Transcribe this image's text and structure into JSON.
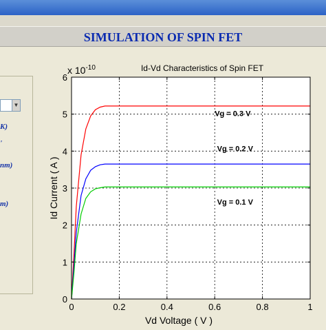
{
  "banner": {
    "title": "SIMULATION OF SPIN FET"
  },
  "left_panel": {
    "params": [
      {
        "text": "K)"
      },
      {
        "text": "'"
      },
      {
        "text": "nm)"
      },
      {
        "text": "m)"
      }
    ]
  },
  "colors": {
    "banner_text": "#0b2bb0",
    "series": [
      "#ff0000",
      "#0000ff",
      "#00cc00"
    ]
  },
  "chart_data": {
    "type": "line",
    "title": "Id-Vd Characteristics of Spin FET",
    "xlabel": "Vd Voltage ( V )",
    "ylabel": "Id Current ( A )",
    "y_exponent": "x 10",
    "y_exponent_power": "-10",
    "xlim": [
      0,
      1
    ],
    "ylim": [
      0,
      6
    ],
    "xticks": [
      "0",
      "0.2",
      "0.4",
      "0.6",
      "0.8",
      "1"
    ],
    "yticks": [
      "0",
      "1",
      "2",
      "3",
      "4",
      "5",
      "6"
    ],
    "grid": true,
    "series": [
      {
        "name": "Vg = 0.3 V",
        "saturation": 5.22,
        "knee": 0.14,
        "x": [
          0,
          0.01,
          0.02,
          0.04,
          0.06,
          0.08,
          0.1,
          0.12,
          0.14,
          0.2,
          0.4,
          0.6,
          0.8,
          1.0
        ],
        "y": [
          0,
          1.2,
          2.5,
          3.9,
          4.6,
          4.95,
          5.12,
          5.19,
          5.22,
          5.22,
          5.22,
          5.22,
          5.22,
          5.22
        ]
      },
      {
        "name": "Vg = 0.2 V",
        "saturation": 3.65,
        "knee": 0.14,
        "x": [
          0,
          0.01,
          0.02,
          0.04,
          0.06,
          0.08,
          0.1,
          0.12,
          0.14,
          0.2,
          0.4,
          0.6,
          0.8,
          1.0
        ],
        "y": [
          0,
          0.9,
          1.8,
          2.8,
          3.25,
          3.48,
          3.58,
          3.63,
          3.65,
          3.65,
          3.65,
          3.65,
          3.65,
          3.65
        ]
      },
      {
        "name": "Vg = 0.1 V",
        "saturation": 3.03,
        "knee": 0.14,
        "x": [
          0,
          0.01,
          0.02,
          0.04,
          0.06,
          0.08,
          0.1,
          0.12,
          0.14,
          0.2,
          0.4,
          0.6,
          0.8,
          1.0
        ],
        "y": [
          0,
          0.7,
          1.5,
          2.3,
          2.72,
          2.9,
          2.98,
          3.01,
          3.03,
          3.03,
          3.03,
          3.03,
          3.03,
          3.03
        ]
      }
    ],
    "annotations": [
      {
        "text": "Vg = 0.3 V",
        "x": 0.6,
        "y": 4.95
      },
      {
        "text": "Vg = 0.2 V",
        "x": 0.61,
        "y": 4.0
      },
      {
        "text": "Vg = 0.1 V",
        "x": 0.61,
        "y": 2.55
      }
    ]
  }
}
